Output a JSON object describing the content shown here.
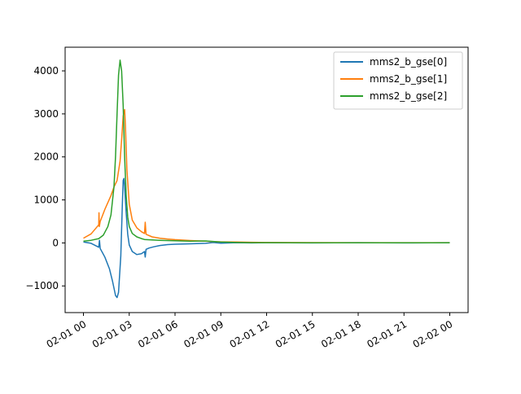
{
  "chart_data": {
    "type": "line",
    "title": "",
    "xlabel": "",
    "ylabel": "",
    "x_unit": "hours since 02-01 00:00",
    "xlim": [
      -1.2,
      25.2
    ],
    "ylim": [
      -1620,
      4550
    ],
    "grid": false,
    "legend_position": "top-right",
    "x_ticks": [
      {
        "value": 0,
        "label": "02-01 00"
      },
      {
        "value": 3,
        "label": "02-01 03"
      },
      {
        "value": 6,
        "label": "02-01 06"
      },
      {
        "value": 9,
        "label": "02-01 09"
      },
      {
        "value": 12,
        "label": "02-01 12"
      },
      {
        "value": 15,
        "label": "02-01 15"
      },
      {
        "value": 18,
        "label": "02-01 18"
      },
      {
        "value": 21,
        "label": "02-01 21"
      },
      {
        "value": 24,
        "label": "02-02 00"
      }
    ],
    "y_ticks": [
      {
        "value": -1000,
        "label": "−1000"
      },
      {
        "value": 0,
        "label": "0"
      },
      {
        "value": 1000,
        "label": "1000"
      },
      {
        "value": 2000,
        "label": "2000"
      },
      {
        "value": 3000,
        "label": "3000"
      },
      {
        "value": 4000,
        "label": "4000"
      }
    ],
    "series": [
      {
        "name": "mms2_b_gse[0]",
        "color": "#1f77b4",
        "x": [
          0,
          0.5,
          1.0,
          1.05,
          1.1,
          1.4,
          1.7,
          1.9,
          2.0,
          2.1,
          2.2,
          2.3,
          2.45,
          2.55,
          2.6,
          2.65,
          2.7,
          2.8,
          2.9,
          3.0,
          3.2,
          3.5,
          3.8,
          4.0,
          4.05,
          4.1,
          4.3,
          4.6,
          5.0,
          5.5,
          6.0,
          7.0,
          8.0,
          8.5,
          9.0,
          10.0,
          11.0,
          12.0,
          15.0,
          18.0,
          21.0,
          24.0
        ],
        "y": [
          20,
          -10,
          -100,
          60,
          -130,
          -330,
          -600,
          -880,
          -1050,
          -1220,
          -1270,
          -1150,
          -300,
          900,
          1450,
          1500,
          1300,
          700,
          200,
          -50,
          -200,
          -270,
          -250,
          -200,
          -330,
          -150,
          -120,
          -90,
          -60,
          -40,
          -30,
          -20,
          -10,
          10,
          -5,
          5,
          0,
          5,
          0,
          5,
          0,
          5
        ]
      },
      {
        "name": "mms2_b_gse[1]",
        "color": "#ff7f0e",
        "x": [
          0,
          0.5,
          1.0,
          1.02,
          1.04,
          1.1,
          1.4,
          1.8,
          2.0,
          2.2,
          2.4,
          2.5,
          2.6,
          2.7,
          2.75,
          2.85,
          3.0,
          3.2,
          3.5,
          3.8,
          4.0,
          4.05,
          4.1,
          4.5,
          5.0,
          5.5,
          6.0,
          7.0,
          8.0,
          8.5,
          9.0,
          10.0,
          11.0,
          12.0,
          15.0,
          18.0,
          21.0,
          24.0
        ],
        "y": [
          110,
          210,
          420,
          700,
          380,
          500,
          780,
          1100,
          1300,
          1450,
          1900,
          2400,
          2950,
          3100,
          2700,
          1700,
          900,
          530,
          350,
          260,
          220,
          480,
          200,
          140,
          110,
          90,
          75,
          55,
          40,
          30,
          25,
          20,
          15,
          10,
          8,
          6,
          5,
          5
        ]
      },
      {
        "name": "mms2_b_gse[2]",
        "color": "#2ca02c",
        "x": [
          0,
          0.5,
          1.0,
          1.3,
          1.6,
          1.8,
          2.0,
          2.1,
          2.2,
          2.3,
          2.4,
          2.5,
          2.6,
          2.7,
          2.8,
          2.9,
          3.0,
          3.2,
          3.5,
          3.8,
          4.0,
          4.5,
          5.0,
          5.5,
          6.0,
          7.0,
          8.0,
          8.5,
          9.0,
          10.0,
          11.0,
          12.0,
          15.0,
          18.0,
          21.0,
          24.0
        ],
        "y": [
          40,
          60,
          100,
          180,
          380,
          650,
          1300,
          2000,
          3000,
          3900,
          4250,
          4000,
          3200,
          2000,
          1100,
          600,
          380,
          220,
          140,
          100,
          80,
          70,
          60,
          55,
          50,
          40,
          45,
          35,
          20,
          10,
          5,
          5,
          3,
          3,
          3,
          3
        ]
      }
    ]
  }
}
